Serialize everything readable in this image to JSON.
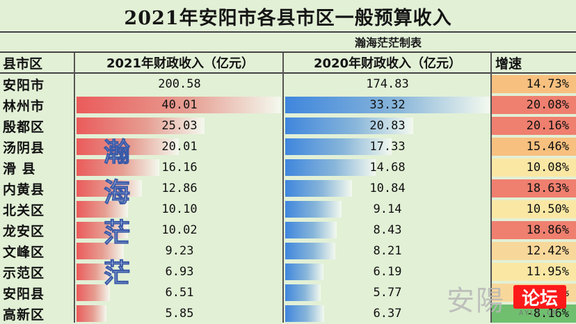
{
  "title": "2021年安阳市各县市区一般预算收入",
  "subtitle": "瀚海茫茫制表",
  "watermark": "瀚海茫茫",
  "logo": {
    "text": "安陽",
    "badge": "论坛",
    "site": "AYLT.CN"
  },
  "colors": {
    "bar_2021": "#ea5b5b",
    "bar_2020": "#3f86dd"
  },
  "chart_data": {
    "type": "table",
    "title": "2021年安阳市各县市区一般预算收入",
    "columns": [
      "县市区",
      "2021年财政收入（亿元）",
      "2020年财政收入（亿元）",
      "增速"
    ],
    "rows": [
      {
        "name": "安阳市",
        "v2021": 200.58,
        "v2020": 174.83,
        "growth": "14.73%",
        "v2021_label": "200.58",
        "v2020_label": "174.83"
      },
      {
        "name": "林州市",
        "v2021": 40.01,
        "v2020": 33.32,
        "growth": "20.08%",
        "v2021_label": "40.01",
        "v2020_label": "33.32"
      },
      {
        "name": "殷都区",
        "v2021": 25.03,
        "v2020": 20.83,
        "growth": "20.16%",
        "v2021_label": "25.03",
        "v2020_label": "20.83"
      },
      {
        "name": "汤阴县",
        "v2021": 20.01,
        "v2020": 17.33,
        "growth": "15.46%",
        "v2021_label": "20.01",
        "v2020_label": "17.33"
      },
      {
        "name": "滑 县",
        "v2021": 16.16,
        "v2020": 14.68,
        "growth": "10.08%",
        "v2021_label": "16.16",
        "v2020_label": "14.68"
      },
      {
        "name": "内黄县",
        "v2021": 12.86,
        "v2020": 10.84,
        "growth": "18.63%",
        "v2021_label": "12.86",
        "v2020_label": "10.84"
      },
      {
        "name": "北关区",
        "v2021": 10.1,
        "v2020": 9.14,
        "growth": "10.50%",
        "v2021_label": "10.10",
        "v2020_label": "9.14"
      },
      {
        "name": "龙安区",
        "v2021": 10.02,
        "v2020": 8.43,
        "growth": "18.86%",
        "v2021_label": "10.02",
        "v2020_label": "8.43"
      },
      {
        "name": "文峰区",
        "v2021": 9.23,
        "v2020": 8.21,
        "growth": "12.42%",
        "v2021_label": "9.23",
        "v2020_label": "8.21"
      },
      {
        "name": "示范区",
        "v2021": 6.93,
        "v2020": 6.19,
        "growth": "11.95%",
        "v2021_label": "6.93",
        "v2020_label": "6.19"
      },
      {
        "name": "安阳县",
        "v2021": 6.51,
        "v2020": 5.77,
        "growth": "12.83%",
        "v2021_label": "6.51",
        "v2020_label": "5.77"
      },
      {
        "name": "高新区",
        "v2021": 5.85,
        "v2020": 6.37,
        "growth": "-8.16%",
        "v2021_label": "5.85",
        "v2020_label": "6.37"
      }
    ]
  }
}
